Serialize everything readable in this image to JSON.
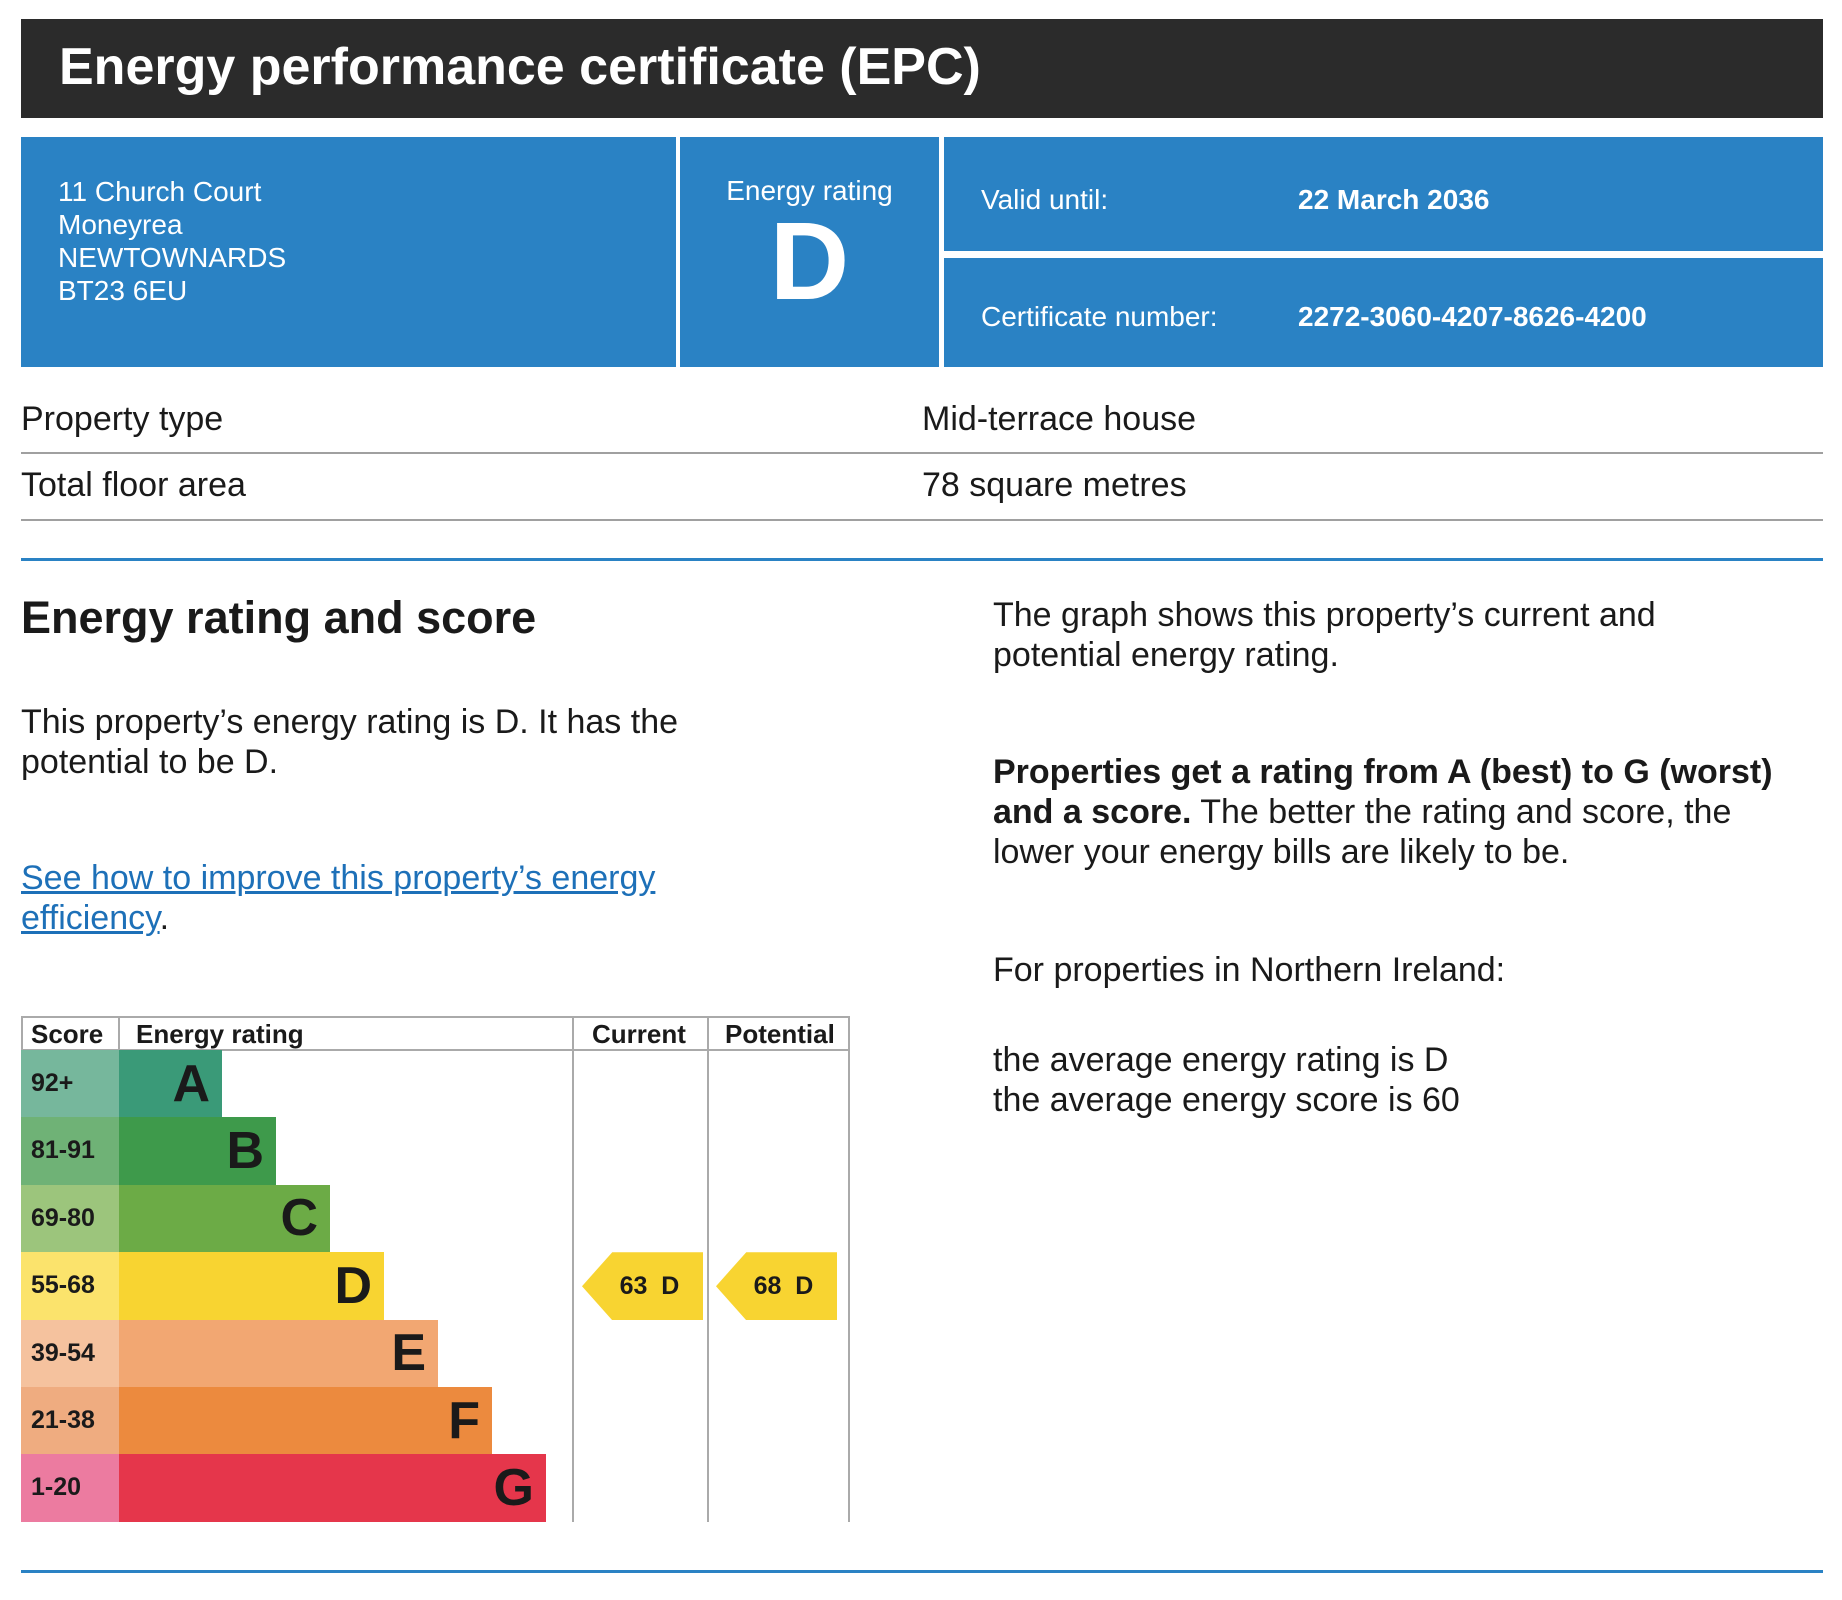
{
  "title": "Energy performance certificate (EPC)",
  "address": [
    "11 Church Court",
    "Moneyrea",
    "NEWTOWNARDS",
    "BT23 6EU"
  ],
  "energy_rating": {
    "label": "Energy rating",
    "value": "D"
  },
  "valid_until": {
    "label": "Valid until:",
    "value": "22 March 2036"
  },
  "certificate_number": {
    "label": "Certificate number:",
    "value": "2272-3060-4207-8626-4200"
  },
  "property": [
    {
      "label": "Property type",
      "value": "Mid-terrace house"
    },
    {
      "label": "Total floor area",
      "value": "78 square metres"
    }
  ],
  "section": {
    "heading": "Energy rating and score",
    "para1_line1": "This property’s energy rating is D. It has the",
    "para1_line2": "potential to be D.",
    "link_line1": "See how to improve this property’s energy",
    "link_line2": "efficiency",
    "link_end": "."
  },
  "right": {
    "graph_line1": "The graph shows this property’s current and",
    "graph_line2": "potential energy rating.",
    "bold_line1": "Properties get a rating from A (best) to G (worst)",
    "bold_line2": "and a score.",
    "rest_line2": " The better the rating and score, the",
    "rest_line3": "lower your energy bills are likely to be.",
    "ni_intro": "For properties in Northern Ireland:",
    "avg_rating": "the average energy rating is D",
    "avg_score": "the average energy score is 60"
  },
  "chart_data": {
    "type": "table",
    "headers": {
      "score": "Score",
      "rating": "Energy rating",
      "current": "Current",
      "potential": "Potential"
    },
    "bands": [
      {
        "letter": "A",
        "range": "92+",
        "color": "#3a9a78",
        "light": "#76b79c"
      },
      {
        "letter": "B",
        "range": "81-91",
        "color": "#3e9a4b",
        "light": "#6fb276"
      },
      {
        "letter": "C",
        "range": "69-80",
        "color": "#6cab46",
        "light": "#9cc57c"
      },
      {
        "letter": "D",
        "range": "55-68",
        "color": "#f8d431",
        "light": "#fbe36c"
      },
      {
        "letter": "E",
        "range": "39-54",
        "color": "#f2a772",
        "light": "#f5c29e"
      },
      {
        "letter": "F",
        "range": "21-38",
        "color": "#ec8a3e",
        "light": "#efac80"
      },
      {
        "letter": "G",
        "range": "1-20",
        "color": "#e5364b",
        "light": "#ec7ba0"
      }
    ],
    "current": {
      "score": 63,
      "band": "D",
      "label": "63  D"
    },
    "potential": {
      "score": 68,
      "band": "D",
      "label": "68  D"
    },
    "arrow_color": "#f8d431"
  }
}
